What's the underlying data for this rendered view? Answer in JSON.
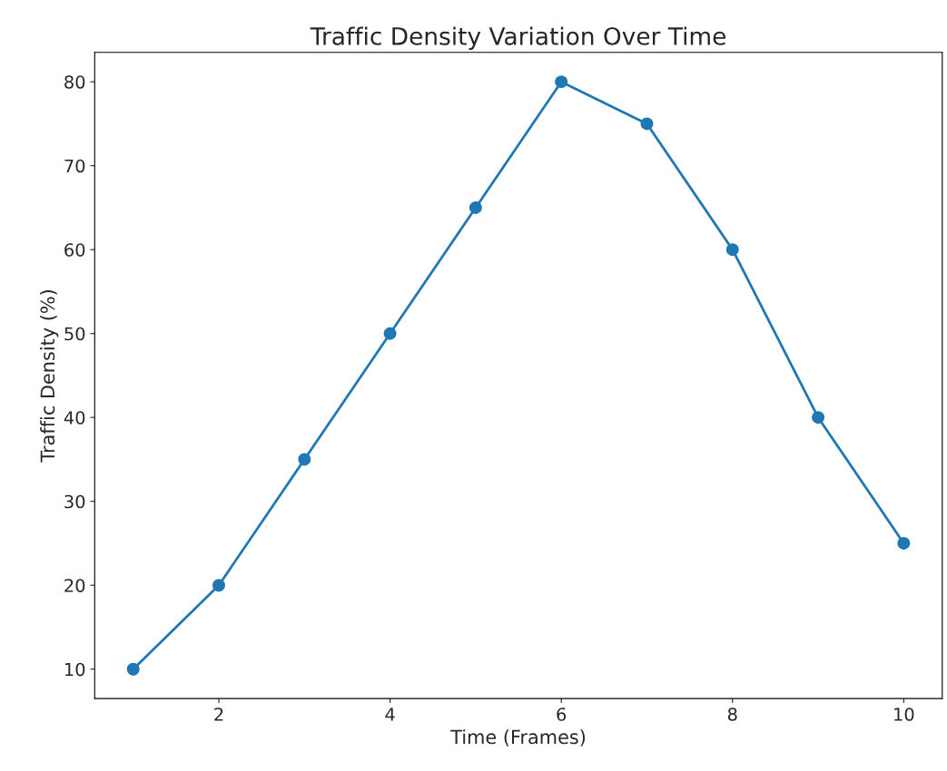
{
  "chart_data": {
    "type": "line",
    "title": "Traffic Density Variation Over Time",
    "xlabel": "Time (Frames)",
    "ylabel": "Traffic Density (%)",
    "x": [
      1,
      2,
      3,
      4,
      5,
      6,
      7,
      8,
      9,
      10
    ],
    "series": [
      {
        "color": "#1f77b4",
        "values": [
          10,
          20,
          35,
          50,
          65,
          80,
          75,
          60,
          40,
          25
        ]
      }
    ],
    "xlim": [
      0.55,
      10.45
    ],
    "ylim": [
      6.5,
      83.5
    ],
    "xticks": [
      2,
      4,
      6,
      8,
      10
    ],
    "yticks": [
      10,
      20,
      30,
      40,
      50,
      60,
      70,
      80
    ],
    "marker": "circle",
    "line_style": "solid",
    "grid": false
  }
}
